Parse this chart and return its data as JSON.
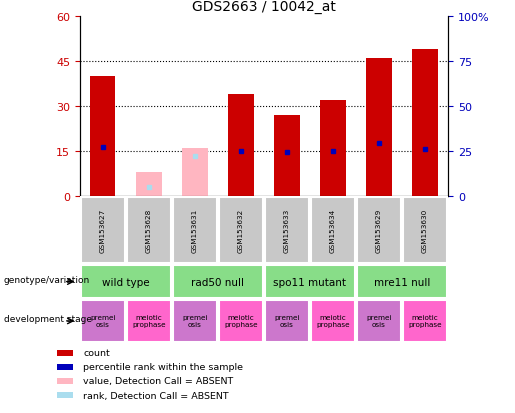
{
  "title": "GDS2663 / 10042_at",
  "samples": [
    "GSM153627",
    "GSM153628",
    "GSM153631",
    "GSM153632",
    "GSM153633",
    "GSM153634",
    "GSM153629",
    "GSM153630"
  ],
  "count_values": [
    40,
    0,
    0,
    34,
    27,
    32,
    46,
    49
  ],
  "count_absent": [
    0,
    8,
    16,
    0,
    0,
    0,
    0,
    0
  ],
  "percentile_values": [
    27,
    0,
    0,
    25,
    24,
    25,
    29,
    26
  ],
  "percentile_absent": [
    0,
    5,
    22,
    0,
    0,
    0,
    0,
    0
  ],
  "left_ylim": [
    0,
    60
  ],
  "right_ylim": [
    0,
    100
  ],
  "left_yticks": [
    0,
    15,
    30,
    45,
    60
  ],
  "right_yticks": [
    0,
    25,
    50,
    75,
    100
  ],
  "right_yticklabels": [
    "0",
    "25",
    "50",
    "75",
    "100%"
  ],
  "genotype_groups": [
    {
      "label": "wild type",
      "start": 0,
      "end": 2
    },
    {
      "label": "rad50 null",
      "start": 2,
      "end": 4
    },
    {
      "label": "spo11 mutant",
      "start": 4,
      "end": 6
    },
    {
      "label": "mre11 null",
      "start": 6,
      "end": 8
    }
  ],
  "dev_stages": [
    {
      "label": "premei\nosis",
      "color": "#CC77CC"
    },
    {
      "label": "meiotic\nprophase",
      "color": "#FF66CC"
    },
    {
      "label": "premei\nosis",
      "color": "#CC77CC"
    },
    {
      "label": "meiotic\nprophase",
      "color": "#FF66CC"
    },
    {
      "label": "premei\nosis",
      "color": "#CC77CC"
    },
    {
      "label": "meiotic\nprophase",
      "color": "#FF66CC"
    },
    {
      "label": "premei\nosis",
      "color": "#CC77CC"
    },
    {
      "label": "meiotic\nprophase",
      "color": "#FF66CC"
    }
  ],
  "red_color": "#CC0000",
  "pink_color": "#FFB6C1",
  "blue_color": "#0000BB",
  "light_blue_color": "#AADDEE",
  "gray_color": "#C8C8C8",
  "green_color": "#88DD88"
}
